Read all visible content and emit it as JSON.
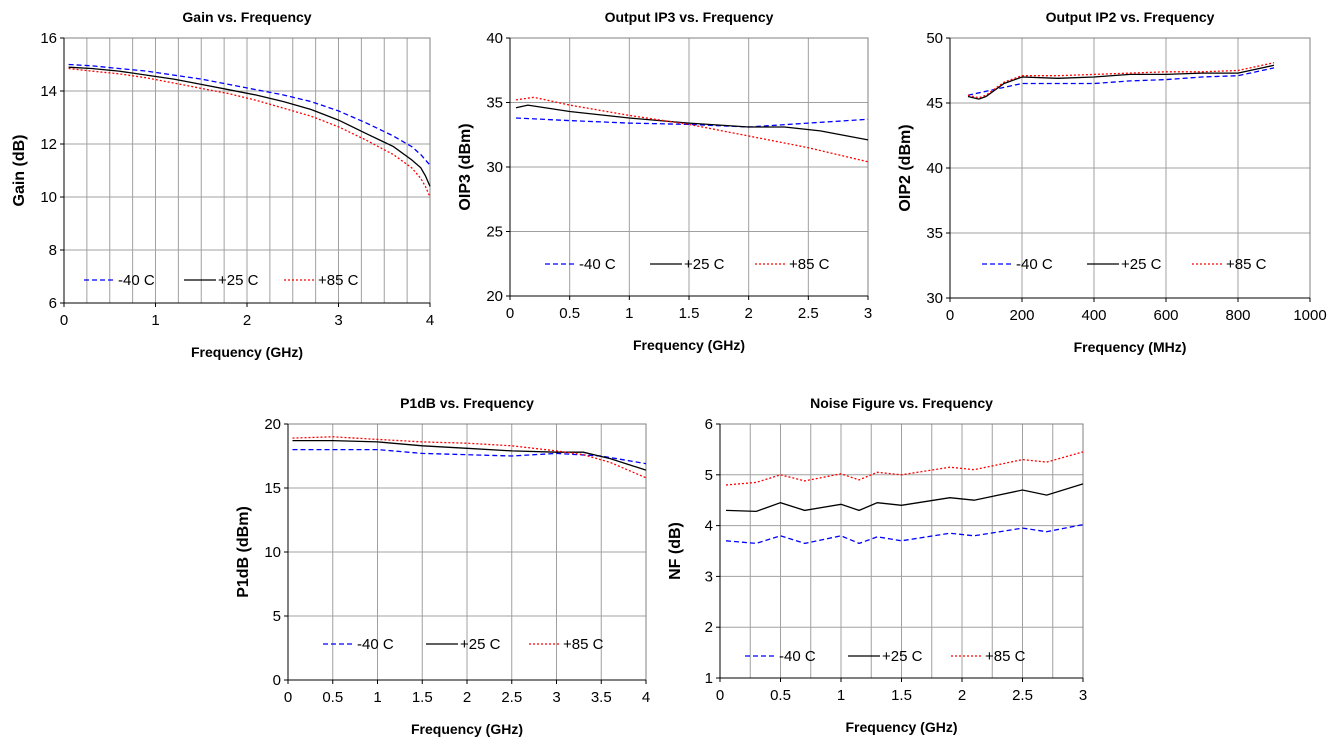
{
  "chart_data": [
    {
      "type": "line",
      "title": "Gain vs. Frequency",
      "xlabel": "Frequency (GHz)",
      "ylabel": "Gain (dB)",
      "xlim": [
        0,
        4
      ],
      "ylim": [
        6,
        16
      ],
      "xticks": [
        0,
        1,
        2,
        3,
        4
      ],
      "xtick_labels": [
        "0",
        "1",
        "2",
        "3",
        "4"
      ],
      "yticks": [
        6,
        8,
        10,
        12,
        14,
        16
      ],
      "ytick_labels": [
        "6",
        "8",
        "10",
        "12",
        "14",
        "16"
      ],
      "xgrid_step": 0.25,
      "grid": true,
      "legend": "bottom-left",
      "series": [
        {
          "name": "-40 C",
          "color": "#0000ff",
          "dash": "dashed",
          "x": [
            0.05,
            0.3,
            0.6,
            0.9,
            1.2,
            1.5,
            1.8,
            2.1,
            2.4,
            2.7,
            3.0,
            3.3,
            3.6,
            3.8,
            3.9,
            3.95,
            4.0
          ],
          "y": [
            15.0,
            14.95,
            14.85,
            14.75,
            14.6,
            14.45,
            14.25,
            14.05,
            13.85,
            13.6,
            13.25,
            12.8,
            12.3,
            11.9,
            11.6,
            11.4,
            11.2
          ]
        },
        {
          "name": "+25 C",
          "color": "#000000",
          "dash": "solid",
          "x": [
            0.05,
            0.3,
            0.6,
            0.9,
            1.2,
            1.5,
            1.8,
            2.1,
            2.4,
            2.7,
            3.0,
            3.3,
            3.6,
            3.8,
            3.9,
            3.95,
            4.0
          ],
          "y": [
            14.9,
            14.85,
            14.75,
            14.6,
            14.45,
            14.25,
            14.05,
            13.85,
            13.6,
            13.3,
            12.9,
            12.4,
            11.9,
            11.4,
            11.1,
            10.8,
            10.4
          ]
        },
        {
          "name": "+85 C",
          "color": "#ff0000",
          "dash": "dotted",
          "x": [
            0.05,
            0.3,
            0.6,
            0.9,
            1.2,
            1.5,
            1.8,
            2.1,
            2.4,
            2.7,
            3.0,
            3.3,
            3.6,
            3.8,
            3.9,
            3.95,
            4.0
          ],
          "y": [
            14.85,
            14.75,
            14.65,
            14.5,
            14.3,
            14.1,
            13.9,
            13.65,
            13.35,
            13.05,
            12.65,
            12.15,
            11.6,
            11.1,
            10.7,
            10.4,
            10.0
          ]
        }
      ]
    },
    {
      "type": "line",
      "title": "Output IP3 vs. Frequency",
      "xlabel": "Frequency (GHz)",
      "ylabel": "OIP3 (dBm)",
      "xlim": [
        0,
        3
      ],
      "ylim": [
        20,
        40
      ],
      "xticks": [
        0,
        0.5,
        1,
        1.5,
        2,
        2.5,
        3
      ],
      "xtick_labels": [
        "0",
        "0.5",
        "1",
        "1.5",
        "2",
        "2.5",
        "3"
      ],
      "yticks": [
        20,
        25,
        30,
        35,
        40
      ],
      "ytick_labels": [
        "20",
        "25",
        "30",
        "35",
        "40"
      ],
      "xgrid_step": 0.5,
      "grid": true,
      "legend": "bottom",
      "series": [
        {
          "name": "-40 C",
          "color": "#0000ff",
          "dash": "dashed",
          "x": [
            0.05,
            0.5,
            1.0,
            1.5,
            2.0,
            2.5,
            3.0
          ],
          "y": [
            33.8,
            33.6,
            33.4,
            33.3,
            33.1,
            33.4,
            33.7
          ]
        },
        {
          "name": "+25 C",
          "color": "#000000",
          "dash": "solid",
          "x": [
            0.05,
            0.15,
            0.5,
            1.0,
            1.5,
            2.0,
            2.3,
            2.6,
            3.0
          ],
          "y": [
            34.6,
            34.8,
            34.3,
            33.8,
            33.4,
            33.1,
            33.1,
            32.8,
            32.1
          ]
        },
        {
          "name": "+85 C",
          "color": "#ff0000",
          "dash": "dotted",
          "x": [
            0.05,
            0.2,
            0.5,
            1.0,
            1.5,
            2.0,
            2.5,
            3.0
          ],
          "y": [
            35.2,
            35.4,
            34.8,
            34.0,
            33.3,
            32.4,
            31.5,
            30.4
          ]
        }
      ]
    },
    {
      "type": "line",
      "title": "Output IP2 vs. Frequency",
      "xlabel": "Frequency (MHz)",
      "ylabel": "OIP2 (dBm)",
      "xlim": [
        0,
        1000
      ],
      "ylim": [
        30,
        50
      ],
      "xticks": [
        0,
        200,
        400,
        600,
        800,
        1000
      ],
      "xtick_labels": [
        "0",
        "200",
        "400",
        "600",
        "800",
        "1000"
      ],
      "yticks": [
        30,
        35,
        40,
        45,
        50
      ],
      "ytick_labels": [
        "30",
        "35",
        "40",
        "45",
        "50"
      ],
      "xgrid_step": 200,
      "grid": true,
      "legend": "bottom",
      "series": [
        {
          "name": "-40 C",
          "color": "#0000ff",
          "dash": "dashed",
          "x": [
            50,
            100,
            150,
            200,
            300,
            400,
            500,
            600,
            700,
            800,
            900
          ],
          "y": [
            45.6,
            45.9,
            46.2,
            46.5,
            46.5,
            46.5,
            46.7,
            46.8,
            47.0,
            47.1,
            47.7
          ]
        },
        {
          "name": "+25 C",
          "color": "#000000",
          "dash": "solid",
          "x": [
            50,
            80,
            100,
            150,
            200,
            300,
            400,
            500,
            600,
            700,
            800,
            900
          ],
          "y": [
            45.5,
            45.3,
            45.5,
            46.5,
            47.0,
            46.9,
            47.0,
            47.2,
            47.2,
            47.3,
            47.3,
            47.9
          ]
        },
        {
          "name": "+85 C",
          "color": "#ff0000",
          "dash": "dotted",
          "x": [
            50,
            80,
            100,
            150,
            200,
            300,
            400,
            500,
            600,
            700,
            800,
            900
          ],
          "y": [
            45.6,
            45.4,
            45.6,
            46.6,
            47.1,
            47.1,
            47.2,
            47.3,
            47.4,
            47.4,
            47.5,
            48.1
          ]
        }
      ]
    },
    {
      "type": "line",
      "title": "P1dB vs. Frequency",
      "xlabel": "Frequency (GHz)",
      "ylabel": "P1dB (dBm)",
      "xlim": [
        0,
        4
      ],
      "ylim": [
        0,
        20
      ],
      "xticks": [
        0,
        0.5,
        1,
        1.5,
        2,
        2.5,
        3,
        3.5,
        4
      ],
      "xtick_labels": [
        "0",
        "0.5",
        "1",
        "1.5",
        "2",
        "2.5",
        "3",
        "3.5",
        "4"
      ],
      "yticks": [
        0,
        5,
        10,
        15,
        20
      ],
      "ytick_labels": [
        "0",
        "5",
        "10",
        "15",
        "20"
      ],
      "xgrid_step": 0.5,
      "grid": true,
      "legend": "bottom",
      "series": [
        {
          "name": "-40 C",
          "color": "#0000ff",
          "dash": "dashed",
          "x": [
            0.05,
            0.5,
            1.0,
            1.5,
            2.0,
            2.5,
            3.0,
            3.5,
            4.0
          ],
          "y": [
            18.0,
            18.0,
            18.0,
            17.7,
            17.6,
            17.5,
            17.7,
            17.5,
            16.9
          ]
        },
        {
          "name": "+25 C",
          "color": "#000000",
          "dash": "solid",
          "x": [
            0.05,
            0.5,
            1.0,
            1.5,
            2.0,
            2.5,
            3.0,
            3.3,
            3.6,
            4.0
          ],
          "y": [
            18.7,
            18.7,
            18.6,
            18.3,
            18.1,
            17.9,
            17.8,
            17.8,
            17.3,
            16.4
          ]
        },
        {
          "name": "+85 C",
          "color": "#ff0000",
          "dash": "dotted",
          "x": [
            0.05,
            0.5,
            1.0,
            1.5,
            2.0,
            2.5,
            3.0,
            3.3,
            3.6,
            4.0
          ],
          "y": [
            18.9,
            19.0,
            18.8,
            18.6,
            18.5,
            18.3,
            17.9,
            17.6,
            17.0,
            15.8
          ]
        }
      ]
    },
    {
      "type": "line",
      "title": "Noise Figure vs. Frequency",
      "xlabel": "Frequency (GHz)",
      "ylabel": "NF (dB)",
      "xlim": [
        0,
        3
      ],
      "ylim": [
        1,
        6
      ],
      "xticks": [
        0,
        0.5,
        1,
        1.5,
        2,
        2.5,
        3
      ],
      "xtick_labels": [
        "0",
        "0.5",
        "1",
        "1.5",
        "2",
        "2.5",
        "3"
      ],
      "yticks": [
        1,
        2,
        3,
        4,
        5,
        6
      ],
      "ytick_labels": [
        "1",
        "2",
        "3",
        "4",
        "5",
        "6"
      ],
      "xgrid_step": 0.25,
      "grid": true,
      "legend": "bottom",
      "series": [
        {
          "name": "-40 C",
          "color": "#0000ff",
          "dash": "dashed",
          "x": [
            0.05,
            0.3,
            0.5,
            0.7,
            1.0,
            1.15,
            1.3,
            1.5,
            1.9,
            2.1,
            2.5,
            2.7,
            3.0
          ],
          "y": [
            3.7,
            3.65,
            3.8,
            3.65,
            3.8,
            3.65,
            3.78,
            3.7,
            3.85,
            3.8,
            3.95,
            3.88,
            4.02
          ]
        },
        {
          "name": "+25 C",
          "color": "#000000",
          "dash": "solid",
          "x": [
            0.05,
            0.3,
            0.5,
            0.7,
            1.0,
            1.15,
            1.3,
            1.5,
            1.9,
            2.1,
            2.5,
            2.7,
            3.0
          ],
          "y": [
            4.3,
            4.28,
            4.45,
            4.3,
            4.42,
            4.3,
            4.45,
            4.4,
            4.55,
            4.5,
            4.7,
            4.6,
            4.82
          ]
        },
        {
          "name": "+85 C",
          "color": "#ff0000",
          "dash": "dotted",
          "x": [
            0.05,
            0.3,
            0.5,
            0.7,
            1.0,
            1.15,
            1.3,
            1.5,
            1.9,
            2.1,
            2.5,
            2.7,
            3.0
          ],
          "y": [
            4.8,
            4.85,
            5.0,
            4.88,
            5.02,
            4.9,
            5.05,
            5.0,
            5.15,
            5.1,
            5.3,
            5.25,
            5.45
          ]
        }
      ]
    }
  ]
}
